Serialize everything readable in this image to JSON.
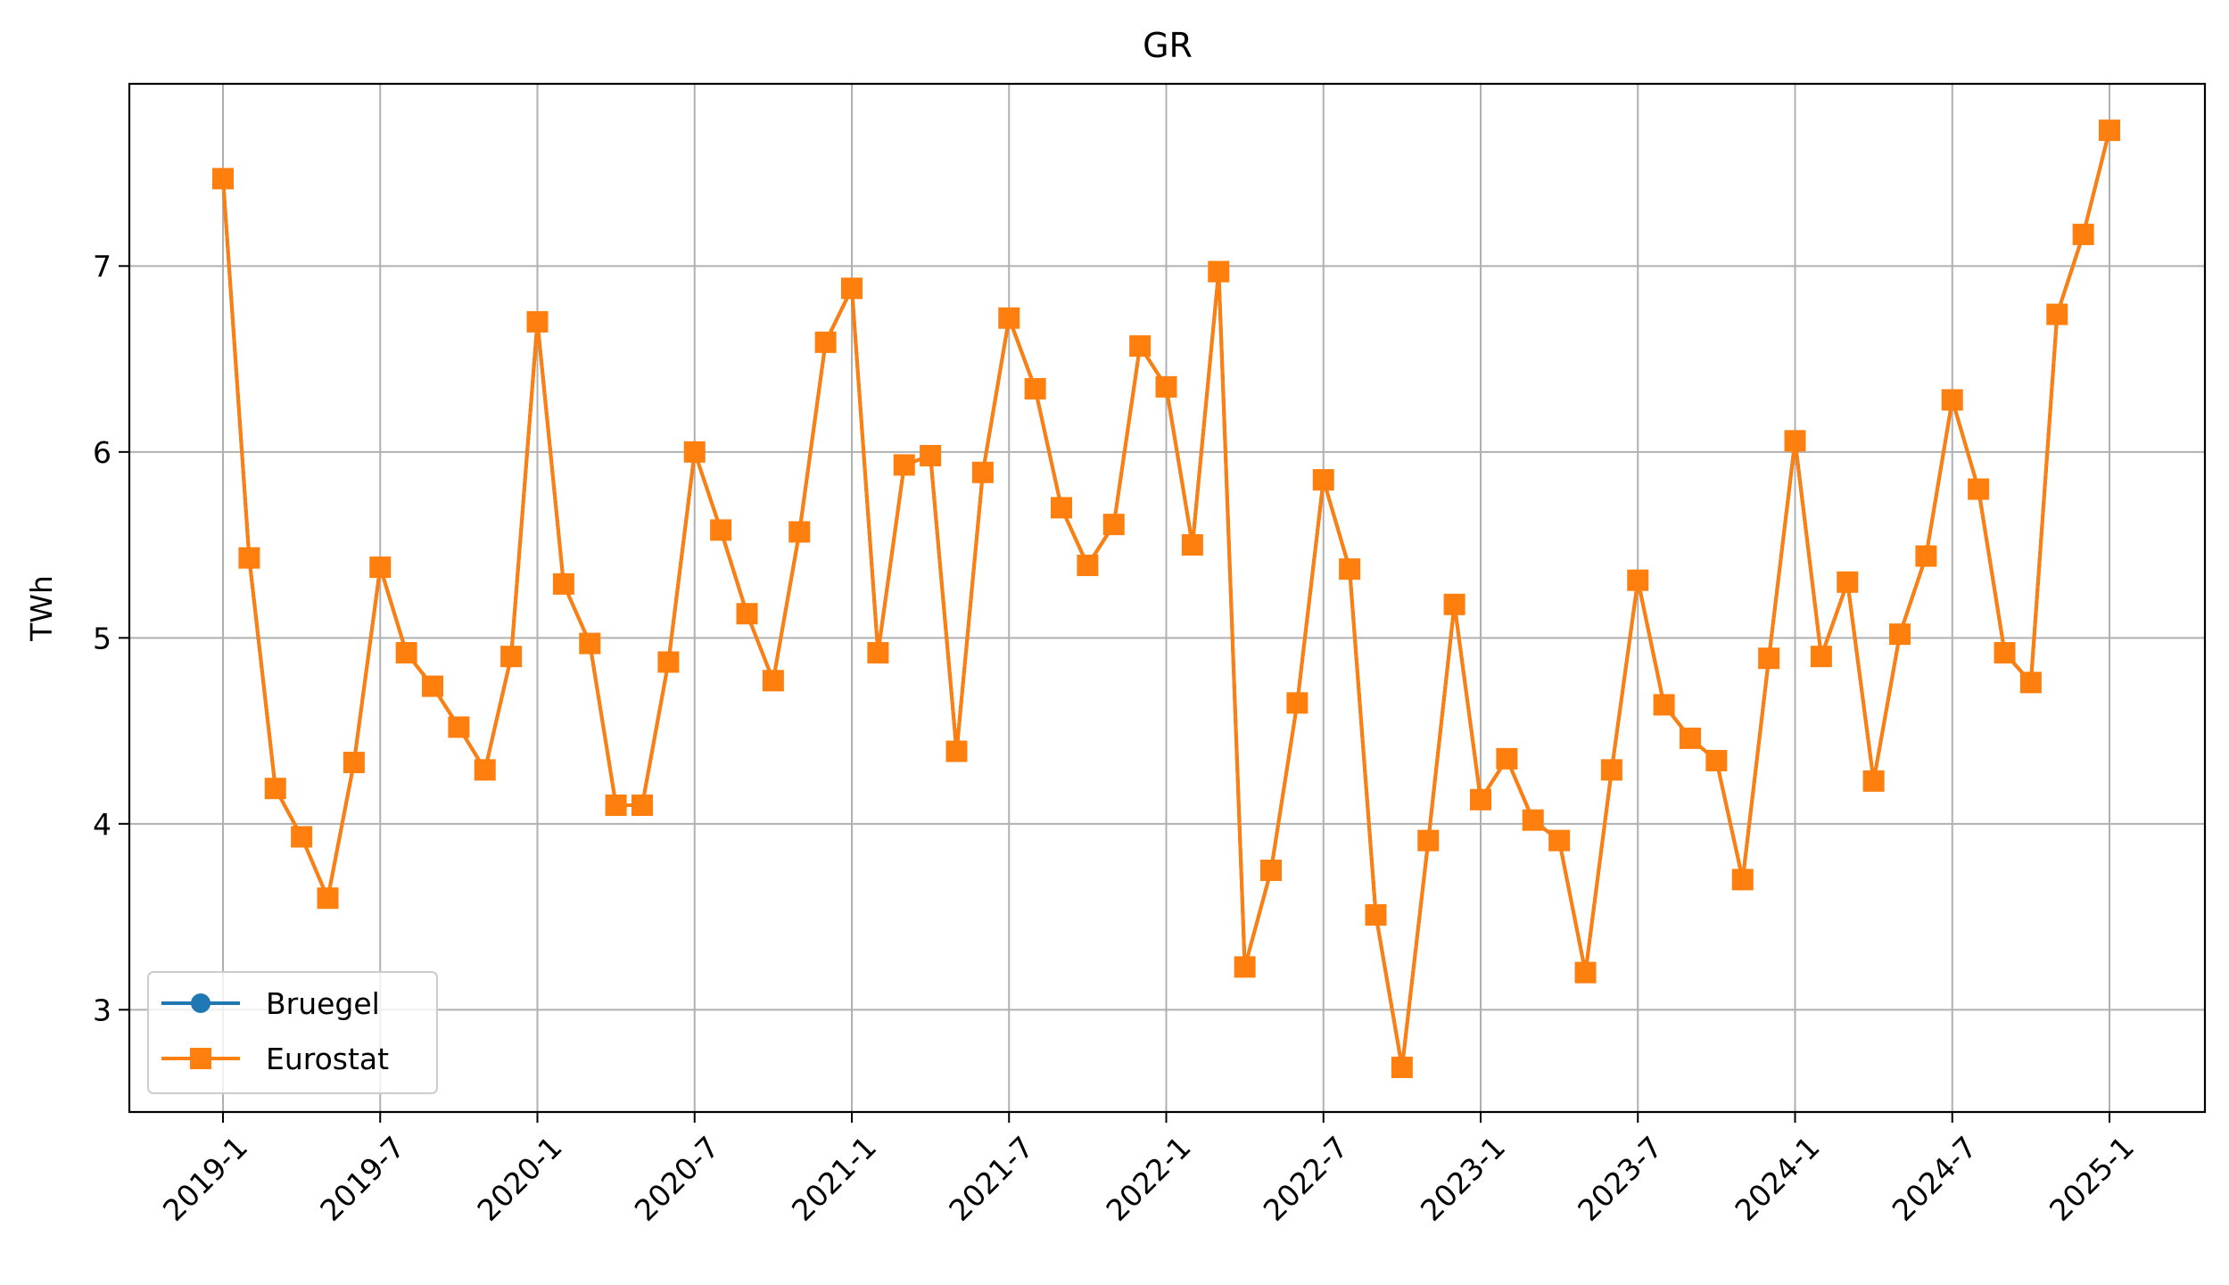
{
  "chart_data": {
    "type": "line",
    "title": "GR",
    "xlabel": "",
    "ylabel": "TWh",
    "grid": true,
    "legend_position": "lower-left",
    "x_tick_labels": [
      "2019-1",
      "2019-7",
      "2020-1",
      "2020-7",
      "2021-1",
      "2021-7",
      "2022-1",
      "2022-7",
      "2023-1",
      "2023-7",
      "2024-1",
      "2024-7",
      "2025-1"
    ],
    "y_ticks": [
      3,
      4,
      5,
      6,
      7
    ],
    "ylim": [
      2.45,
      7.98
    ],
    "x_start": "2019-01",
    "x_end": "2025-01",
    "colors": {
      "bruegel": "#1f77b4",
      "eurostat": "#ff7f0e"
    },
    "series": [
      {
        "name": "Bruegel",
        "marker": "circle",
        "color": "#1f77b4",
        "values": [
          7.47,
          5.43,
          4.19,
          3.93,
          3.6,
          4.33,
          5.38,
          4.92,
          4.74,
          4.52,
          4.29,
          4.9,
          6.7,
          5.29,
          4.97,
          4.1,
          4.1,
          4.87,
          6.0,
          5.58,
          5.13,
          4.77,
          5.57,
          6.59,
          6.88,
          4.92,
          5.93,
          5.98,
          4.39,
          5.89,
          6.72,
          6.34,
          5.7,
          5.39,
          5.61,
          6.57,
          6.35,
          5.5,
          6.97,
          3.23,
          3.75,
          4.65,
          5.85,
          5.37,
          3.51,
          2.69,
          3.91,
          5.18,
          4.13,
          4.35,
          4.02,
          3.91,
          3.2,
          4.29,
          5.31,
          4.64,
          4.46,
          4.34,
          3.7,
          4.89,
          6.06,
          4.9,
          5.3,
          4.23,
          5.02,
          5.44,
          6.28,
          5.8,
          4.92,
          4.76,
          6.74,
          7.17,
          7.73
        ]
      },
      {
        "name": "Eurostat",
        "marker": "square",
        "color": "#ff7f0e",
        "values": [
          7.47,
          5.43,
          4.19,
          3.93,
          3.6,
          4.33,
          5.38,
          4.92,
          4.74,
          4.52,
          4.29,
          4.9,
          6.7,
          5.29,
          4.97,
          4.1,
          4.1,
          4.87,
          6.0,
          5.58,
          5.13,
          4.77,
          5.57,
          6.59,
          6.88,
          4.92,
          5.93,
          5.98,
          4.39,
          5.89,
          6.72,
          6.34,
          5.7,
          5.39,
          5.61,
          6.57,
          6.35,
          5.5,
          6.97,
          3.23,
          3.75,
          4.65,
          5.85,
          5.37,
          3.51,
          2.69,
          3.91,
          5.18,
          4.13,
          4.35,
          4.02,
          3.91,
          3.2,
          4.29,
          5.31,
          4.64,
          4.46,
          4.34,
          3.7,
          4.89,
          6.06,
          4.9,
          5.3,
          4.23,
          5.02,
          5.44,
          6.28,
          5.8,
          4.92,
          4.76,
          6.74,
          7.17,
          7.73
        ]
      }
    ]
  }
}
